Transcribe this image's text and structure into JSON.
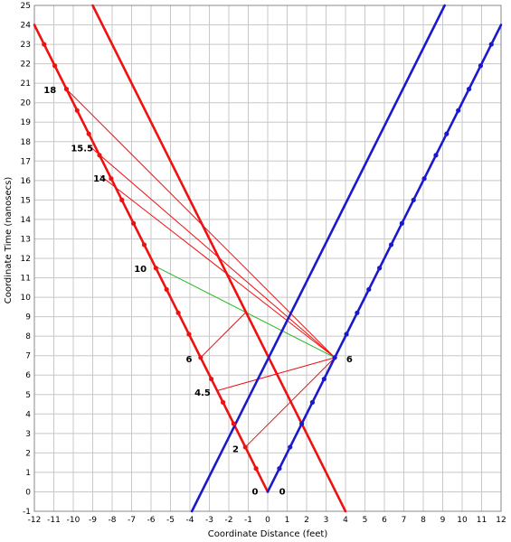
{
  "chart_data": {
    "type": "line",
    "xlabel": "Coordinate Distance (feet)",
    "ylabel": "Coordinate Time (nanosecs)",
    "xlim": [
      -12,
      12
    ],
    "ylim": [
      -1,
      25
    ],
    "xticks": [
      "-12",
      "-11",
      "-10",
      "-9",
      "-8",
      "-7",
      "-6",
      "-5",
      "-4",
      "-3",
      "-2",
      "-1",
      "0",
      "1",
      "2",
      "3",
      "4",
      "5",
      "6",
      "7",
      "8",
      "9",
      "10",
      "11",
      "12"
    ],
    "yticks": [
      "-1",
      "0",
      "1",
      "2",
      "3",
      "4",
      "5",
      "6",
      "7",
      "8",
      "9",
      "10",
      "11",
      "12",
      "13",
      "14",
      "15",
      "16",
      "17",
      "18",
      "19",
      "20",
      "21",
      "22",
      "23",
      "24",
      "25"
    ],
    "grid": true,
    "colors": {
      "red": "#ee1111",
      "blue": "#1a1acc",
      "green": "#22bb22",
      "grid": "#c8c8c8"
    },
    "series": [
      {
        "color": "#ee1111",
        "points": [
          [
            0,
            0
          ],
          [
            -12,
            24
          ]
        ],
        "markers": [
          [
            -0.6,
            1.2
          ],
          [
            -1.15,
            2.3
          ],
          [
            -1.75,
            3.5
          ],
          [
            -2.3,
            4.6
          ],
          [
            -2.9,
            5.8
          ],
          [
            -3.45,
            6.9
          ],
          [
            -4.05,
            8.1
          ],
          [
            -4.6,
            9.2
          ],
          [
            -5.2,
            10.4
          ],
          [
            -5.75,
            11.5
          ],
          [
            -6.35,
            12.7
          ],
          [
            -6.9,
            13.8
          ],
          [
            -7.5,
            15.0
          ],
          [
            -8.05,
            16.1
          ],
          [
            -8.65,
            17.3
          ],
          [
            -9.2,
            18.4
          ],
          [
            -9.8,
            19.6
          ],
          [
            -10.35,
            20.7
          ],
          [
            -10.95,
            21.9
          ],
          [
            -11.5,
            23.0
          ]
        ]
      },
      {
        "color": "#1a1acc",
        "points": [
          [
            0,
            0
          ],
          [
            12,
            24
          ]
        ],
        "markers": [
          [
            0.6,
            1.2
          ],
          [
            1.15,
            2.3
          ],
          [
            1.75,
            3.5
          ],
          [
            2.3,
            4.6
          ],
          [
            2.9,
            5.8
          ],
          [
            3.45,
            6.9
          ],
          [
            4.05,
            8.1
          ],
          [
            4.6,
            9.2
          ],
          [
            5.2,
            10.4
          ],
          [
            5.75,
            11.5
          ],
          [
            6.35,
            12.7
          ],
          [
            6.9,
            13.8
          ],
          [
            7.5,
            15.0
          ],
          [
            8.05,
            16.1
          ],
          [
            8.65,
            17.3
          ],
          [
            9.2,
            18.4
          ],
          [
            9.8,
            19.6
          ],
          [
            10.35,
            20.7
          ],
          [
            10.95,
            21.9
          ],
          [
            11.5,
            23.0
          ]
        ]
      },
      {
        "color": "#ee1111",
        "points": [
          [
            -9,
            25
          ],
          [
            4,
            -1
          ]
        ]
      },
      {
        "color": "#1a1acc",
        "points": [
          [
            -3.9,
            -1
          ],
          [
            9.1,
            25
          ]
        ]
      }
    ],
    "light_rays": {
      "color": "#ee1111",
      "segments": [
        [
          [
            -1.15,
            2.3
          ],
          [
            3.45,
            6.9
          ]
        ],
        [
          [
            -2.6,
            5.2
          ],
          [
            3.45,
            6.9
          ]
        ],
        [
          [
            -3.45,
            6.9
          ],
          [
            -1.1,
            9.25
          ]
        ],
        [
          [
            -8.6,
            16.25
          ],
          [
            3.45,
            6.9
          ]
        ],
        [
          [
            -9.2,
            17.8
          ],
          [
            3.45,
            6.9
          ]
        ],
        [
          [
            -10.35,
            20.7
          ],
          [
            3.45,
            6.9
          ]
        ]
      ]
    },
    "green_segments": [
      [
        [
          -5.8,
          11.6
        ],
        [
          3.45,
          6.9
        ]
      ]
    ],
    "annotations": [
      {
        "text": "0",
        "x": -0.65,
        "y": -0.15
      },
      {
        "text": "0",
        "x": 0.75,
        "y": -0.15
      },
      {
        "text": "2",
        "x": -1.65,
        "y": 2.05
      },
      {
        "text": "4.5",
        "x": -3.35,
        "y": 4.95
      },
      {
        "text": "6",
        "x": -4.05,
        "y": 6.65
      },
      {
        "text": "6",
        "x": 4.2,
        "y": 6.65
      },
      {
        "text": "10",
        "x": -6.55,
        "y": 11.3
      },
      {
        "text": "14",
        "x": -8.65,
        "y": 15.95
      },
      {
        "text": "15.5",
        "x": -9.55,
        "y": 17.5
      },
      {
        "text": "18",
        "x": -11.2,
        "y": 20.5
      }
    ]
  }
}
